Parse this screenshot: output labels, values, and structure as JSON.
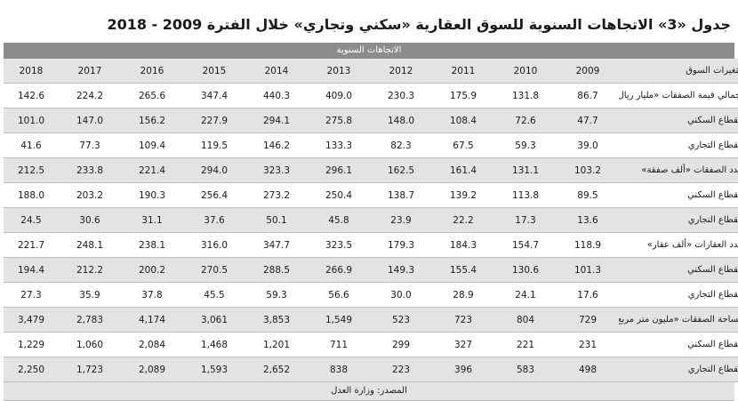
{
  "title": "جدول «3» الاتجاهات السنوية للسوق العقارية «سكني وتجاري» خلال الفترة 2009 - 2018",
  "band_label": "الاتجاهات السنوية",
  "source": "المصدر: وزارة العدل",
  "header": {
    "label": "متغيرات السوق",
    "years": [
      "2009",
      "2010",
      "2011",
      "2012",
      "2013",
      "2014",
      "2015",
      "2016",
      "2017",
      "2018"
    ]
  },
  "rows": [
    {
      "label": "إجمالي قيمة الصفقات «مليار ريال»",
      "values": [
        "86.7",
        "131.8",
        "175.9",
        "230.3",
        "409.0",
        "440.3",
        "347.4",
        "265.6",
        "224.2",
        "142.6"
      ]
    },
    {
      "label": "القطاع السكني",
      "values": [
        "47.7",
        "72.6",
        "108.4",
        "148.0",
        "275.8",
        "294.1",
        "227.9",
        "156.2",
        "147.0",
        "101.0"
      ]
    },
    {
      "label": "القطاع التجاري",
      "values": [
        "39.0",
        "59.3",
        "67.5",
        "82.3",
        "133.3",
        "146.2",
        "119.5",
        "109.4",
        "77.3",
        "41.6"
      ]
    },
    {
      "label": "عدد الصفقات «ألف صفقة»",
      "values": [
        "103.2",
        "131.1",
        "161.4",
        "162.5",
        "296.1",
        "323.3",
        "294.0",
        "221.4",
        "233.8",
        "212.5"
      ]
    },
    {
      "label": "القطاع السكني",
      "values": [
        "89.5",
        "113.8",
        "139.2",
        "138.7",
        "250.4",
        "273.2",
        "256.4",
        "190.3",
        "203.2",
        "188.0"
      ]
    },
    {
      "label": "القطاع التجاري",
      "values": [
        "13.6",
        "17.3",
        "22.2",
        "23.9",
        "45.8",
        "50.1",
        "37.6",
        "31.1",
        "30.6",
        "24.5"
      ]
    },
    {
      "label": "عدد العقارات «ألف عقار»",
      "values": [
        "118.9",
        "154.7",
        "184.3",
        "179.3",
        "323.5",
        "347.7",
        "316.0",
        "238.1",
        "248.1",
        "221.7"
      ]
    },
    {
      "label": "القطاع السكني",
      "values": [
        "101.3",
        "130.6",
        "155.4",
        "149.3",
        "266.9",
        "288.5",
        "270.5",
        "200.2",
        "212.2",
        "194.4"
      ]
    },
    {
      "label": "القطاع التجاري",
      "values": [
        "17.6",
        "24.1",
        "28.9",
        "30.0",
        "56.6",
        "59.3",
        "45.5",
        "37.8",
        "35.9",
        "27.3"
      ]
    },
    {
      "label": "مساحة الصفقات «مليون متر مربع»",
      "values": [
        "729",
        "804",
        "723",
        "523",
        "1,549",
        "3,853",
        "3,061",
        "4,174",
        "2,783",
        "3,479"
      ]
    },
    {
      "label": "القطاع السكني",
      "values": [
        "231",
        "221",
        "327",
        "299",
        "711",
        "1,201",
        "1,468",
        "2,084",
        "1,060",
        "1,229"
      ]
    },
    {
      "label": "القطاع التجاري",
      "values": [
        "498",
        "583",
        "396",
        "223",
        "838",
        "2,652",
        "1,593",
        "2,089",
        "1,723",
        "2,250"
      ]
    }
  ]
}
